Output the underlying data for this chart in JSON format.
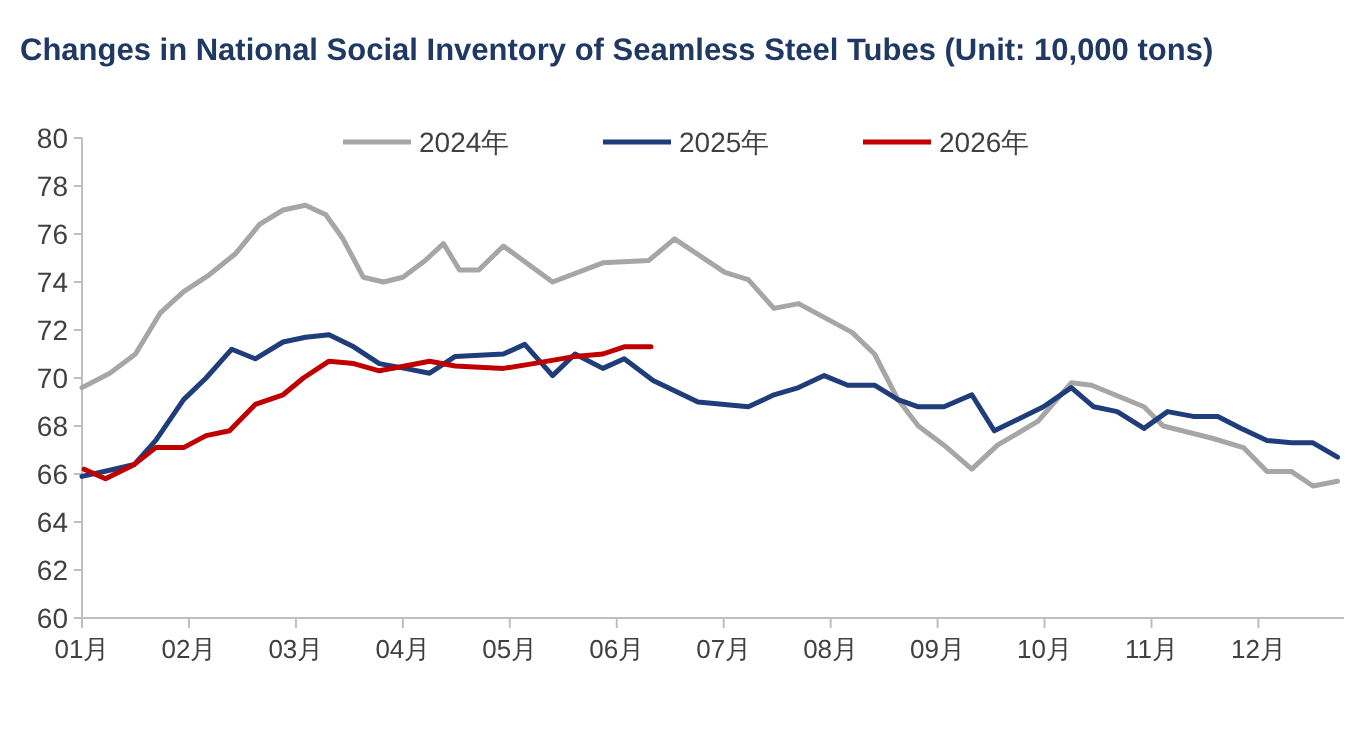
{
  "chart_data": {
    "type": "line",
    "title": "Changes in National Social Inventory of Seamless Steel Tubes (Unit: 10,000 tons)",
    "xlim": [
      1,
      12.8
    ],
    "xticks": [
      {
        "value": 1,
        "label": "01月"
      },
      {
        "value": 2,
        "label": "02月"
      },
      {
        "value": 3,
        "label": "03月"
      },
      {
        "value": 4,
        "label": "04月"
      },
      {
        "value": 5,
        "label": "05月"
      },
      {
        "value": 6,
        "label": "06月"
      },
      {
        "value": 7,
        "label": "07月"
      },
      {
        "value": 8,
        "label": "08月"
      },
      {
        "value": 9,
        "label": "09月"
      },
      {
        "value": 10,
        "label": "10月"
      },
      {
        "value": 11,
        "label": "11月"
      },
      {
        "value": 12,
        "label": "12月"
      }
    ],
    "ylim": [
      60,
      80
    ],
    "yticks": [
      60,
      62,
      64,
      66,
      68,
      70,
      72,
      74,
      76,
      78,
      80
    ],
    "legend": "top",
    "line_style": "solid",
    "marker": "none",
    "series": [
      {
        "name": "2024年",
        "color": "#a6a6a6",
        "x": [
          1.0,
          1.26,
          1.5,
          1.73,
          1.95,
          2.19,
          2.44,
          2.66,
          2.88,
          3.09,
          3.28,
          3.44,
          3.63,
          3.82,
          4.0,
          4.21,
          4.38,
          4.53,
          4.71,
          4.94,
          5.4,
          5.87,
          6.3,
          6.54,
          7.01,
          7.23,
          7.47,
          7.7,
          8.2,
          8.41,
          8.63,
          8.82,
          9.06,
          9.32,
          9.56,
          9.94,
          10.25,
          10.44,
          10.93,
          11.11,
          11.56,
          11.86,
          12.08,
          12.31,
          12.51,
          12.74
        ],
        "values": [
          69.6,
          70.2,
          71.0,
          72.7,
          73.6,
          74.3,
          75.2,
          76.4,
          77.0,
          77.2,
          76.8,
          75.8,
          74.2,
          74.0,
          74.2,
          74.9,
          75.6,
          74.5,
          74.5,
          75.5,
          74.0,
          74.8,
          74.9,
          75.8,
          74.4,
          74.1,
          72.9,
          73.1,
          71.9,
          71.0,
          69.1,
          68.0,
          67.2,
          66.2,
          67.2,
          68.2,
          69.8,
          69.7,
          68.8,
          68.0,
          67.5,
          67.1,
          66.1,
          66.1,
          65.5,
          65.7
        ]
      },
      {
        "name": "2025年",
        "color": "#1f3d7a",
        "x": [
          1.0,
          1.3,
          1.49,
          1.69,
          1.95,
          2.16,
          2.4,
          2.62,
          2.88,
          3.09,
          3.31,
          3.54,
          3.78,
          4.02,
          4.25,
          4.49,
          4.94,
          5.14,
          5.4,
          5.61,
          5.87,
          6.07,
          6.34,
          6.76,
          7.23,
          7.47,
          7.7,
          7.94,
          8.16,
          8.41,
          8.63,
          8.82,
          9.06,
          9.32,
          9.53,
          9.99,
          10.25,
          10.46,
          10.68,
          10.93,
          11.15,
          11.39,
          11.62,
          11.84,
          12.08,
          12.31,
          12.51,
          12.74
        ],
        "values": [
          65.9,
          66.2,
          66.4,
          67.4,
          69.1,
          70.0,
          71.2,
          70.8,
          71.5,
          71.7,
          71.8,
          71.3,
          70.6,
          70.4,
          70.2,
          70.9,
          71.0,
          71.4,
          70.1,
          71.0,
          70.4,
          70.8,
          69.9,
          69.0,
          68.8,
          69.3,
          69.6,
          70.1,
          69.7,
          69.7,
          69.1,
          68.8,
          68.8,
          69.3,
          67.8,
          68.8,
          69.6,
          68.8,
          68.6,
          67.9,
          68.6,
          68.4,
          68.4,
          67.9,
          67.4,
          67.3,
          67.3,
          66.7
        ]
      },
      {
        "name": "2026年",
        "color": "#c00000",
        "x": [
          1.02,
          1.22,
          1.49,
          1.69,
          1.95,
          2.16,
          2.38,
          2.62,
          2.88,
          3.07,
          3.31,
          3.54,
          3.78,
          4.02,
          4.25,
          4.49,
          4.94,
          5.22,
          5.61,
          5.87,
          6.07,
          6.32
        ],
        "values": [
          66.2,
          65.8,
          66.4,
          67.1,
          67.1,
          67.6,
          67.8,
          68.9,
          69.3,
          70.0,
          70.7,
          70.6,
          70.3,
          70.5,
          70.7,
          70.5,
          70.4,
          70.6,
          70.9,
          71.0,
          71.3,
          71.3
        ]
      }
    ]
  }
}
